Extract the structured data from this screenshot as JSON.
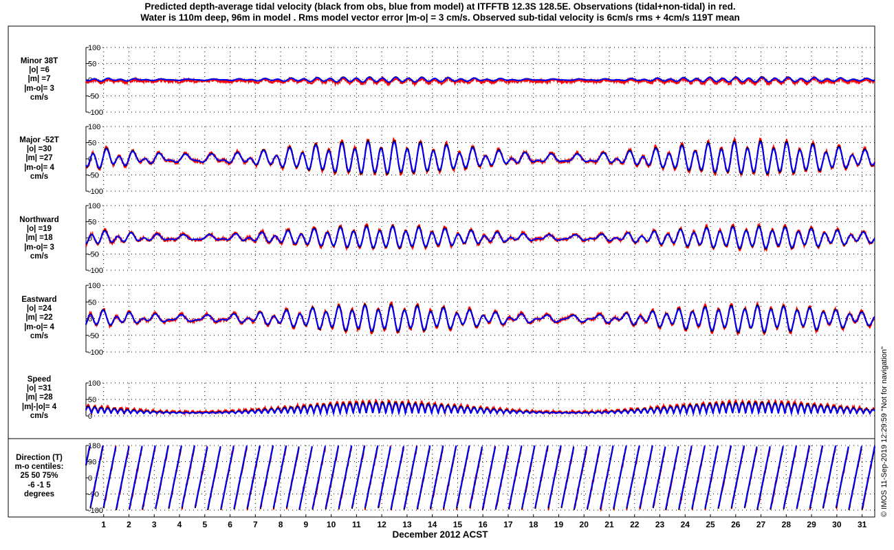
{
  "title_lines": [
    "Predicted depth-average tidal velocity (black from obs, blue from model) at ITFFTB 12.3S 128.5E. Observations (tidal+non-tidal) in red.",
    "Water is 110m deep, 96m in model . Rms model vector error |m-o| = 3 cm/s. Observed sub-tidal velocity is 6cm/s rms + 4cm/s 119T mean"
  ],
  "xlabel": "December 2012 ACST",
  "credit": "© IMOS 11-Sep-2019 12:29:59  \"Not for navigation\"",
  "colors": {
    "obs_tidal": "#000000",
    "model": "#0000ff",
    "observations": "#ff0000",
    "grid": "#000000"
  },
  "panels": [
    {
      "id": "minor",
      "lines": [
        "Minor 38T",
        "|o| =6",
        "|m| =7",
        "|m-o|= 3",
        "cm/s"
      ]
    },
    {
      "id": "major",
      "lines": [
        "Major -52T",
        "|o| =30",
        "|m| =27",
        "|m-o|= 4",
        "cm/s"
      ]
    },
    {
      "id": "northward",
      "lines": [
        "Northward",
        "|o| =19",
        "|m| =18",
        "|m-o|= 3",
        "cm/s"
      ]
    },
    {
      "id": "eastward",
      "lines": [
        "Eastward",
        "|o| =24",
        "|m| =22",
        "|m-o|= 4",
        "cm/s"
      ]
    },
    {
      "id": "speed",
      "lines": [
        "Speed",
        "|o| =31",
        "|m| =28",
        "|m|-|o|= 4",
        "cm/s"
      ]
    },
    {
      "id": "direction",
      "lines": [
        "Direction (T)",
        "m-o centiles:",
        "25  50  75%",
        "-6  -1   5",
        "degrees"
      ]
    }
  ],
  "chart_data": [
    {
      "type": "line",
      "panel": "Minor 38T",
      "yticks": [
        "100",
        "50",
        "0",
        "-50",
        "-100"
      ],
      "ylim": [
        -100,
        100
      ],
      "amplitude_cm_s": 7,
      "series": [],
      "x_ticks": [
        "1",
        "2",
        "3",
        "4",
        "5",
        "6",
        "7",
        "8",
        "9",
        "10",
        "11",
        "12",
        "13",
        "14",
        "15",
        "16",
        "17",
        "18",
        "19",
        "20",
        "21",
        "22",
        "23",
        "24",
        "25",
        "26",
        "27",
        "28",
        "29",
        "30",
        "31"
      ]
    },
    {
      "type": "line",
      "panel": "Major -52T",
      "yticks": [
        "100",
        "50",
        "0",
        "-50",
        "-100"
      ],
      "ylim": [
        -100,
        100
      ],
      "amplitude_cm_s": 45,
      "series": []
    },
    {
      "type": "line",
      "panel": "Northward",
      "yticks": [
        "100",
        "50",
        "0",
        "-50",
        "-100"
      ],
      "ylim": [
        -100,
        100
      ],
      "amplitude_cm_s": 30,
      "series": []
    },
    {
      "type": "line",
      "panel": "Eastward",
      "yticks": [
        "100",
        "50",
        "0",
        "-50",
        "-100"
      ],
      "ylim": [
        -100,
        100
      ],
      "amplitude_cm_s": 35,
      "series": []
    },
    {
      "type": "line",
      "panel": "Speed",
      "yticks": [
        "100",
        "50",
        "0"
      ],
      "ylim": [
        0,
        100
      ],
      "amplitude_cm_s": 30,
      "series": []
    },
    {
      "type": "line",
      "panel": "Direction (T)",
      "yticks": [
        "180",
        "90",
        "0",
        "-90",
        "-180"
      ],
      "ylim": [
        -180,
        180
      ],
      "series": []
    }
  ],
  "x_axis": {
    "days": [
      "1",
      "2",
      "3",
      "4",
      "5",
      "6",
      "7",
      "8",
      "9",
      "10",
      "11",
      "12",
      "13",
      "14",
      "15",
      "16",
      "17",
      "18",
      "19",
      "20",
      "21",
      "22",
      "23",
      "24",
      "25",
      "26",
      "27",
      "28",
      "29",
      "30",
      "31"
    ],
    "xlim": [
      0.3,
      31.5
    ],
    "grid": "dotted"
  }
}
